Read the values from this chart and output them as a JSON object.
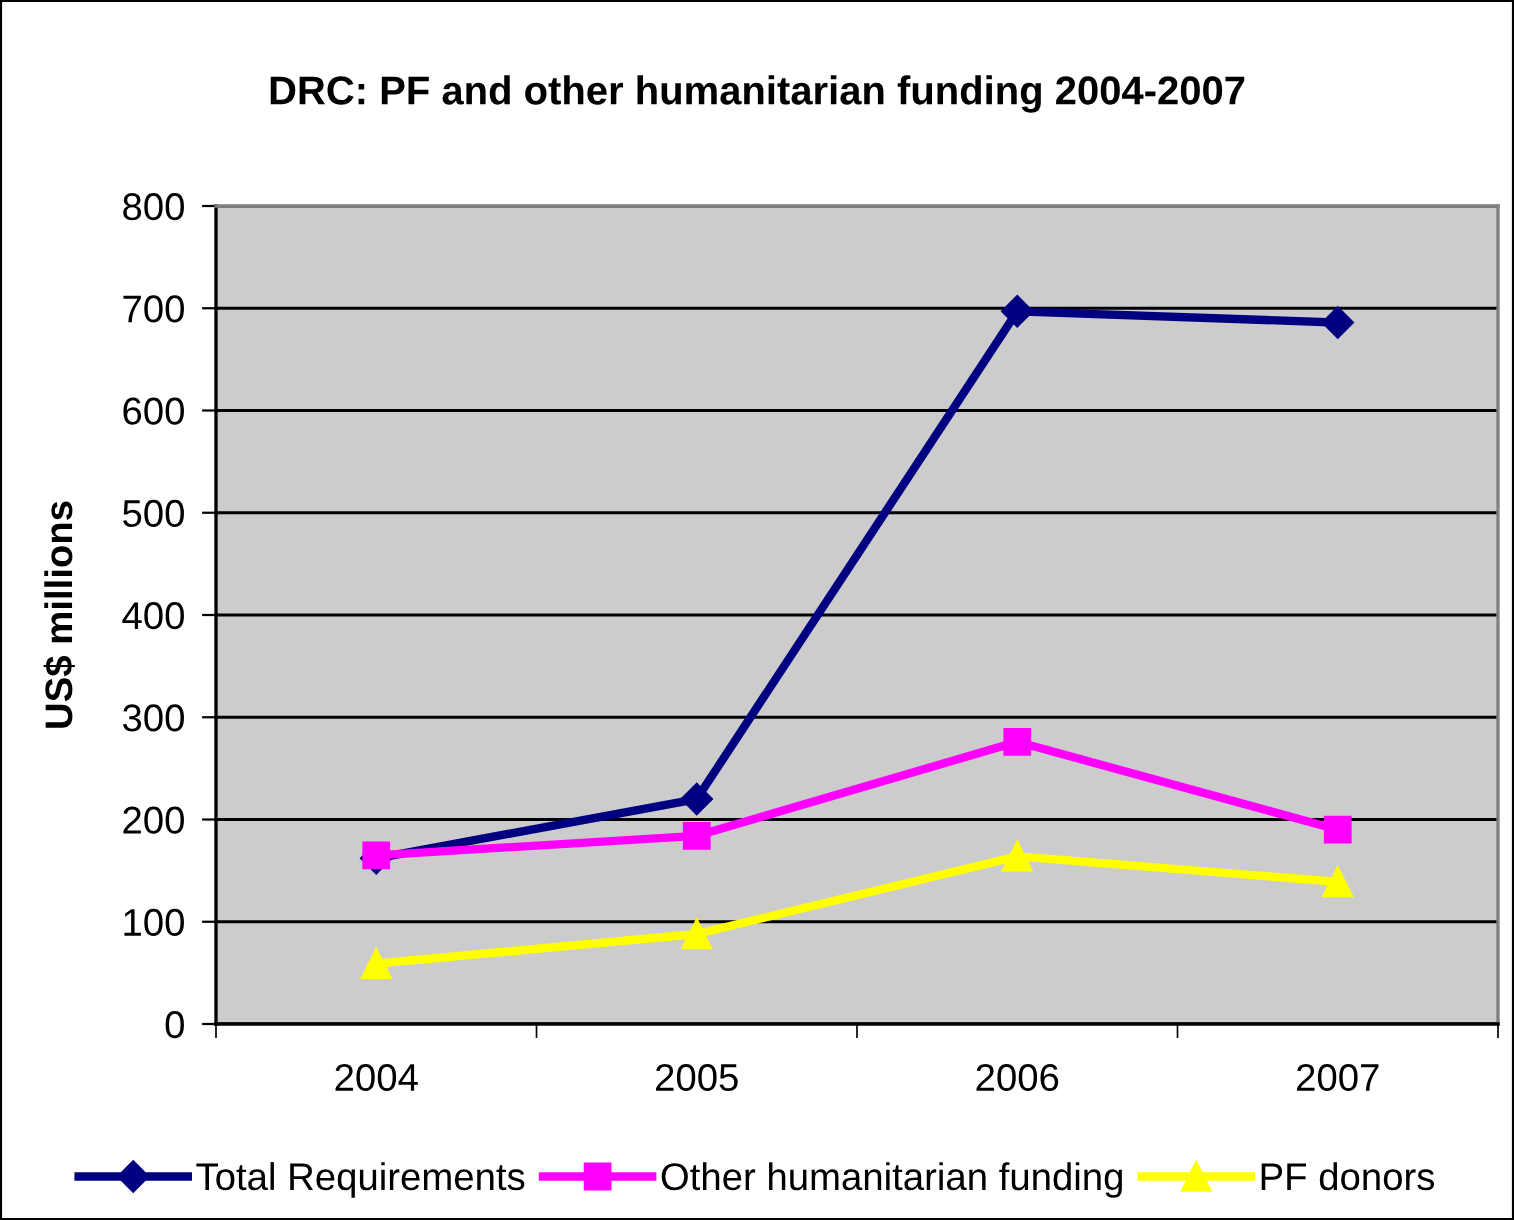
{
  "chart_data": {
    "type": "line",
    "title": "DRC: PF and other humanitarian funding 2004-2007",
    "ylabel": "US$ millions",
    "categories": [
      "2004",
      "2005",
      "2006",
      "2007"
    ],
    "series": [
      {
        "name": "Total Requirements",
        "color": "#000080",
        "marker": "diamond",
        "values": [
          162,
          220,
          697,
          686
        ]
      },
      {
        "name": "Other humanitarian funding",
        "color": "#ff00ff",
        "marker": "square",
        "values": [
          165,
          184,
          276,
          190
        ]
      },
      {
        "name": "PF donors",
        "color": "#ffff00",
        "marker": "triangle",
        "values": [
          59,
          88,
          164,
          139
        ]
      }
    ],
    "ylim": [
      0,
      800
    ],
    "yticks": [
      0,
      100,
      200,
      300,
      400,
      500,
      600,
      700,
      800
    ],
    "grid": "y",
    "legend": "bottom",
    "line_style": "solid"
  }
}
